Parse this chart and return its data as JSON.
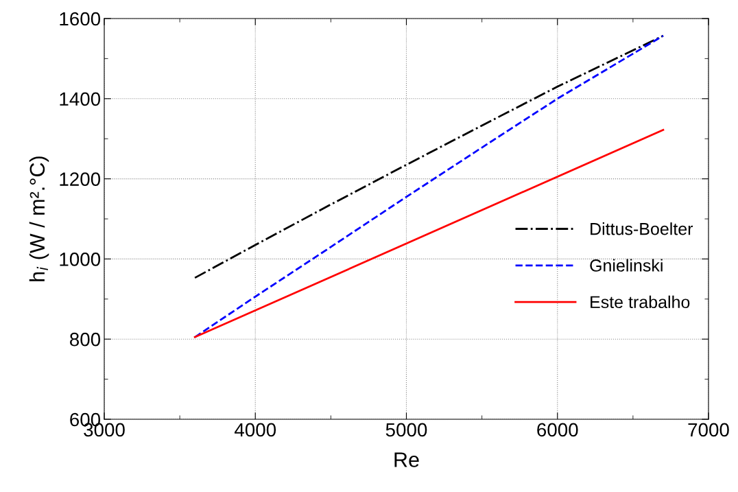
{
  "chart_data": {
    "type": "line",
    "xlabel": "Re",
    "ylabel": "h$_{i}$ (W / m².°C)",
    "xlim": [
      3000,
      7000
    ],
    "xticks": [
      3000,
      4000,
      5000,
      6000,
      7000
    ],
    "ylim": [
      600,
      1600
    ],
    "yticks": [
      600,
      800,
      1000,
      1200,
      1400,
      1600
    ],
    "grid": true,
    "legend": "right",
    "marker": "none",
    "series": [
      {
        "name": "Dittus-Boelter",
        "color": "#000000",
        "line_style": "dashdot",
        "x": [
          3600,
          4000,
          4500,
          5000,
          5500,
          6000,
          6700
        ],
        "values": [
          953,
          1035,
          1136,
          1235,
          1333,
          1430,
          1557
        ]
      },
      {
        "name": "Gnielinski",
        "color": "#0000ff",
        "line_style": "dashed",
        "x": [
          3600,
          4000,
          4500,
          5000,
          5500,
          6000,
          6700
        ],
        "values": [
          805,
          906,
          1030,
          1155,
          1278,
          1400,
          1557
        ]
      },
      {
        "name": "Este trabalho",
        "color": "#ff0000",
        "line_style": "solid",
        "x": [
          3600,
          6700
        ],
        "values": [
          805,
          1322
        ]
      }
    ]
  }
}
